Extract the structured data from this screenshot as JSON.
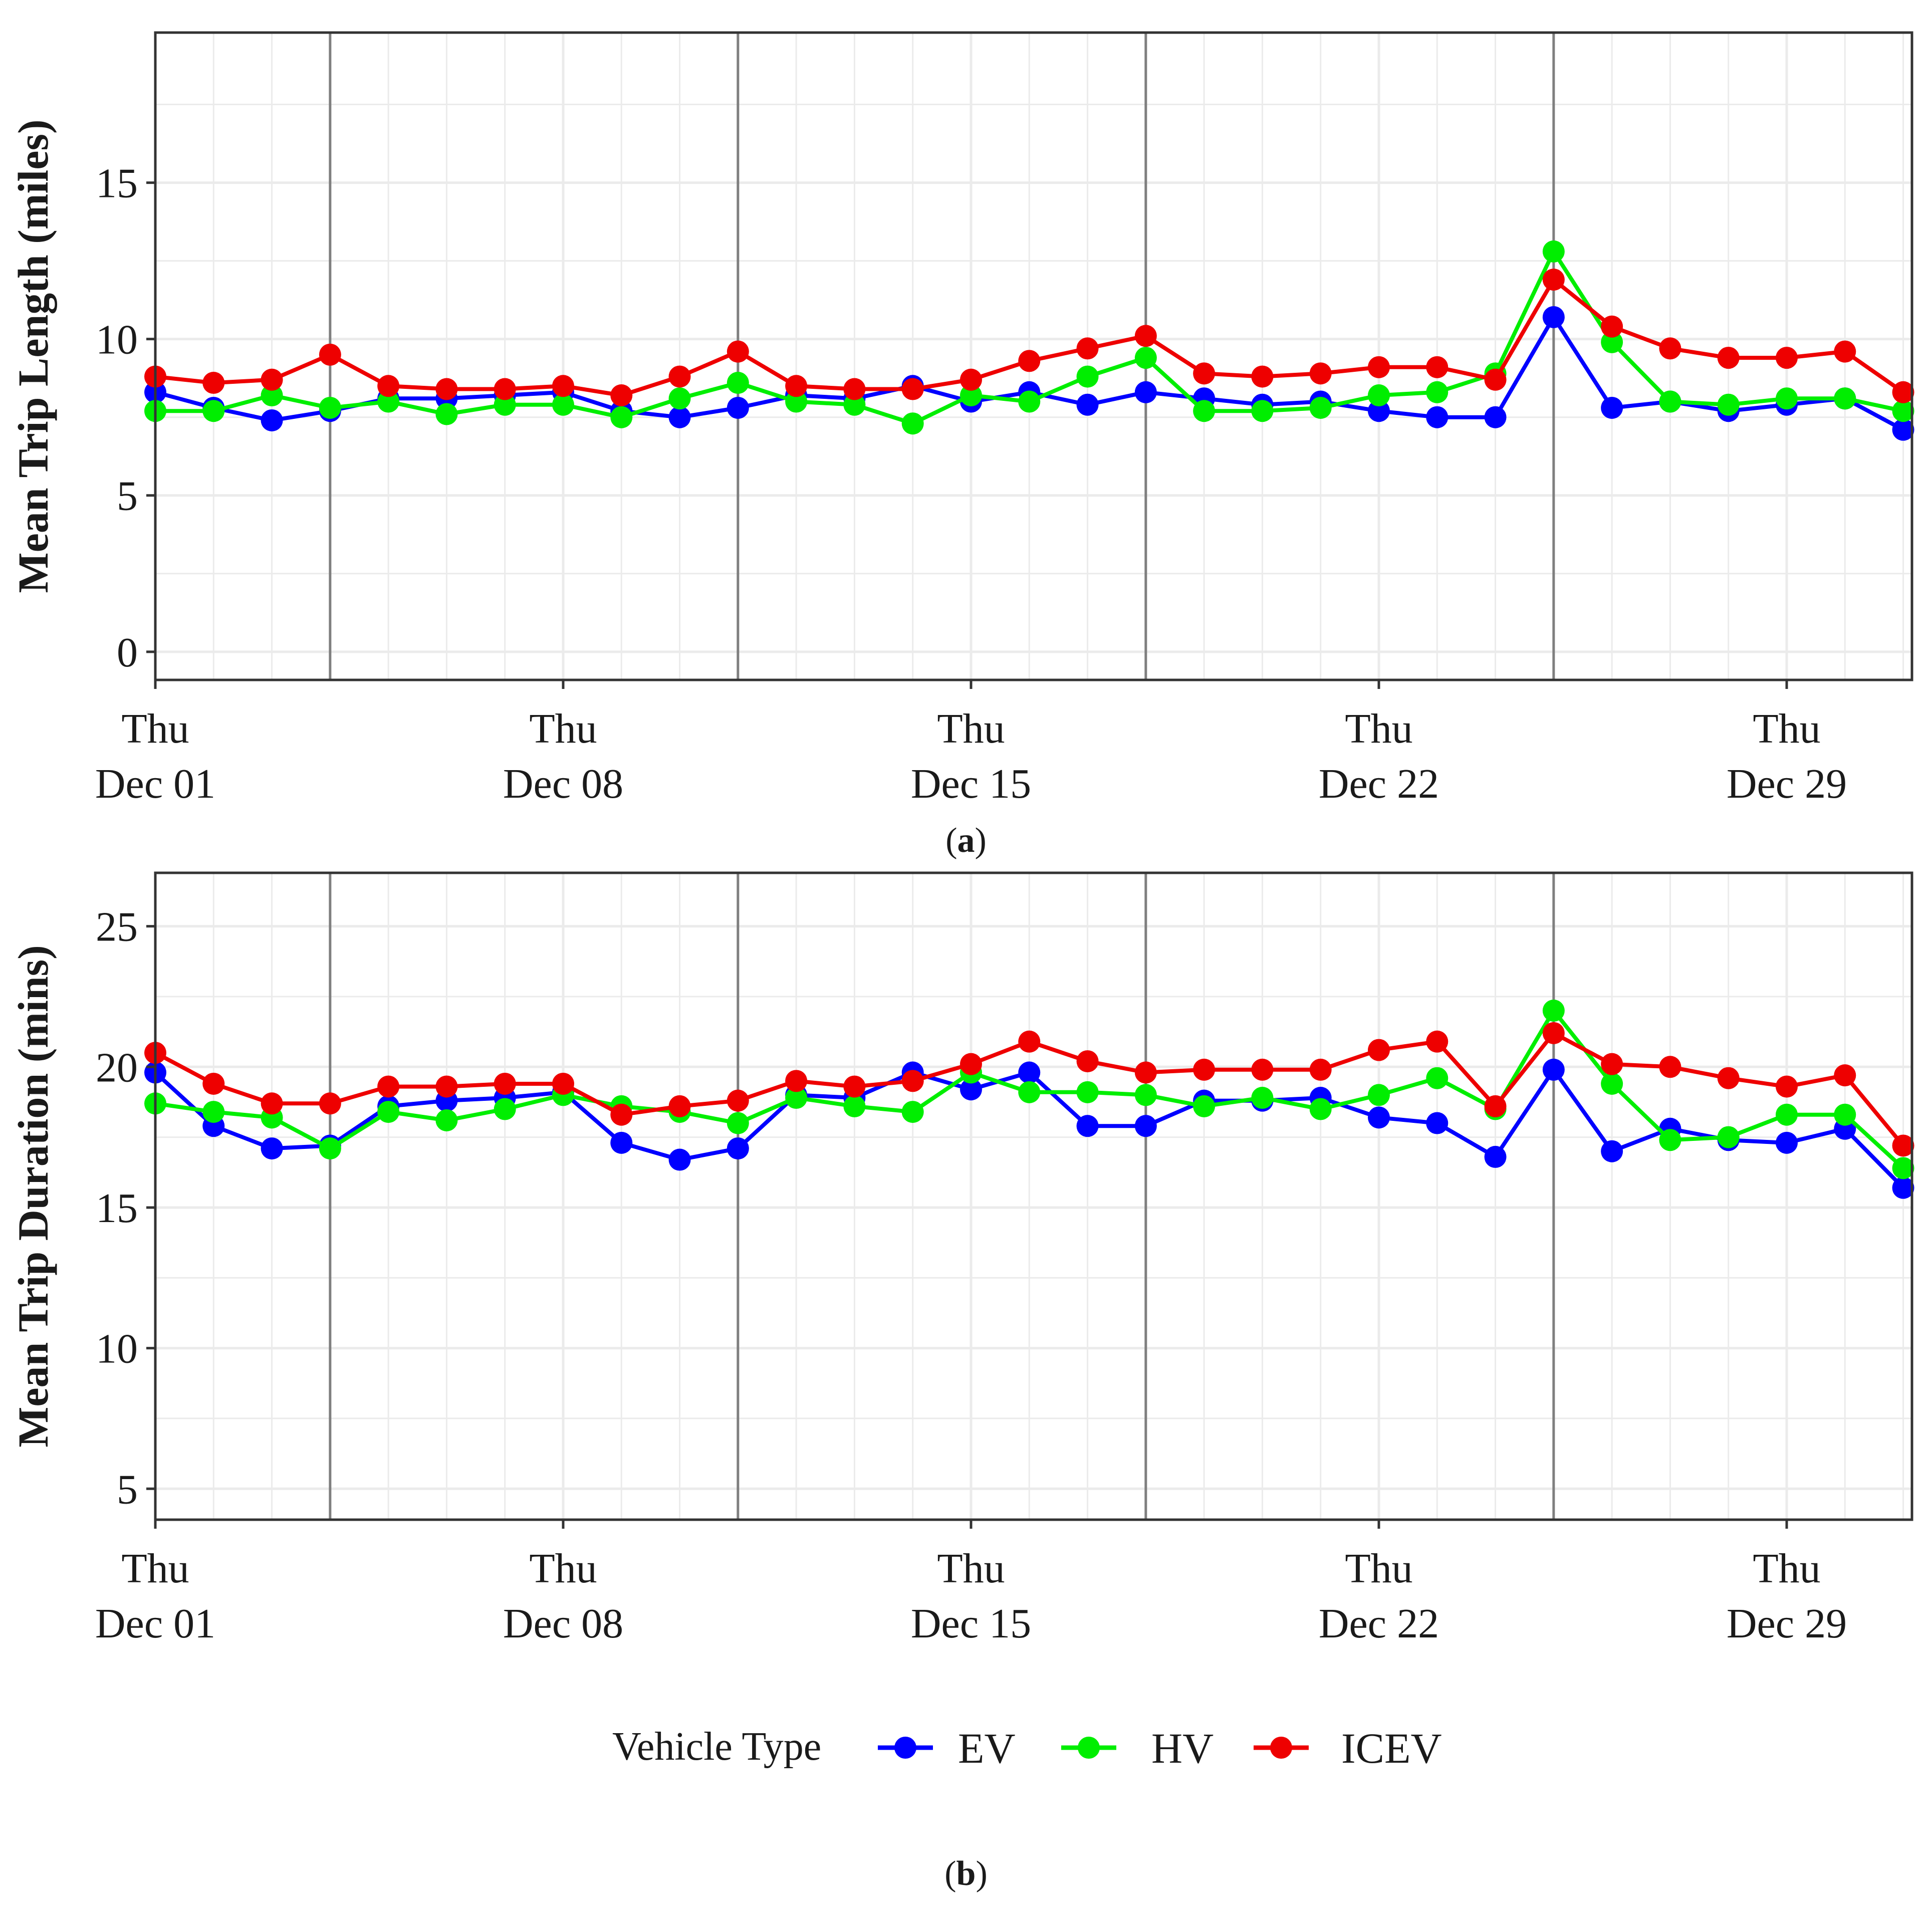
{
  "chart_data": [
    {
      "type": "line",
      "panel_label": "a",
      "ylabel": "Mean Trip Length (miles)",
      "xlabel": "",
      "ylim": [
        -0.9,
        19.8
      ],
      "yticks": [
        0,
        5,
        10,
        15
      ],
      "ytick_labels": [
        "0",
        "5",
        "10",
        "15"
      ],
      "x_dates": [
        "Dec 01",
        "Dec 02",
        "Dec 03",
        "Dec 04",
        "Dec 05",
        "Dec 06",
        "Dec 07",
        "Dec 08",
        "Dec 09",
        "Dec 10",
        "Dec 11",
        "Dec 12",
        "Dec 13",
        "Dec 14",
        "Dec 15",
        "Dec 16",
        "Dec 17",
        "Dec 18",
        "Dec 19",
        "Dec 20",
        "Dec 21",
        "Dec 22",
        "Dec 23",
        "Dec 24",
        "Dec 25",
        "Dec 26",
        "Dec 27",
        "Dec 28",
        "Dec 29",
        "Dec 30",
        "Dec 31"
      ],
      "xticks": [
        {
          "day": 1,
          "weekday": "Thu",
          "date": "Dec 01"
        },
        {
          "day": 8,
          "weekday": "Thu",
          "date": "Dec 08"
        },
        {
          "day": 15,
          "weekday": "Thu",
          "date": "Dec 15"
        },
        {
          "day": 22,
          "weekday": "Thu",
          "date": "Dec 22"
        },
        {
          "day": 29,
          "weekday": "Thu",
          "date": "Dec 29"
        }
      ],
      "highlight_days": [
        4,
        11,
        18,
        25
      ],
      "series": [
        {
          "name": "EV",
          "color": "#0000ff",
          "values": [
            8.3,
            7.8,
            7.4,
            7.7,
            8.1,
            8.1,
            8.2,
            8.3,
            7.7,
            7.5,
            7.8,
            8.2,
            8.1,
            8.5,
            8.0,
            8.3,
            7.9,
            8.3,
            8.1,
            7.9,
            8.0,
            7.7,
            7.5,
            7.5,
            10.7,
            7.8,
            8.0,
            7.7,
            7.9,
            8.1,
            7.1
          ]
        },
        {
          "name": "HV",
          "color": "#00ee00",
          "values": [
            7.7,
            7.7,
            8.2,
            7.8,
            8.0,
            7.6,
            7.9,
            7.9,
            7.5,
            8.1,
            8.6,
            8.0,
            7.9,
            7.3,
            8.2,
            8.0,
            8.8,
            9.4,
            7.7,
            7.7,
            7.8,
            8.2,
            8.3,
            8.9,
            12.8,
            9.9,
            8.0,
            7.9,
            8.1,
            8.1,
            7.7
          ]
        },
        {
          "name": "ICEV",
          "color": "#ee0000",
          "values": [
            8.8,
            8.6,
            8.7,
            9.5,
            8.5,
            8.4,
            8.4,
            8.5,
            8.2,
            8.8,
            9.6,
            8.5,
            8.4,
            8.4,
            8.7,
            9.3,
            9.7,
            10.1,
            8.9,
            8.8,
            8.9,
            9.1,
            9.1,
            8.7,
            11.9,
            10.4,
            9.7,
            9.4,
            9.4,
            9.6,
            8.3
          ]
        }
      ]
    },
    {
      "type": "line",
      "panel_label": "b",
      "ylabel": "Mean Trip Duration (mins)",
      "xlabel": "",
      "ylim": [
        3.9,
        26.9
      ],
      "yticks": [
        5,
        10,
        15,
        20,
        25
      ],
      "ytick_labels": [
        "5",
        "10",
        "15",
        "20",
        "25"
      ],
      "x_dates": [
        "Dec 01",
        "Dec 02",
        "Dec 03",
        "Dec 04",
        "Dec 05",
        "Dec 06",
        "Dec 07",
        "Dec 08",
        "Dec 09",
        "Dec 10",
        "Dec 11",
        "Dec 12",
        "Dec 13",
        "Dec 14",
        "Dec 15",
        "Dec 16",
        "Dec 17",
        "Dec 18",
        "Dec 19",
        "Dec 20",
        "Dec 21",
        "Dec 22",
        "Dec 23",
        "Dec 24",
        "Dec 25",
        "Dec 26",
        "Dec 27",
        "Dec 28",
        "Dec 29",
        "Dec 30",
        "Dec 31"
      ],
      "xticks": [
        {
          "day": 1,
          "weekday": "Thu",
          "date": "Dec 01"
        },
        {
          "day": 8,
          "weekday": "Thu",
          "date": "Dec 08"
        },
        {
          "day": 15,
          "weekday": "Thu",
          "date": "Dec 15"
        },
        {
          "day": 22,
          "weekday": "Thu",
          "date": "Dec 22"
        },
        {
          "day": 29,
          "weekday": "Thu",
          "date": "Dec 29"
        }
      ],
      "highlight_days": [
        4,
        11,
        18,
        25
      ],
      "series": [
        {
          "name": "EV",
          "color": "#0000ff",
          "values": [
            19.8,
            17.9,
            17.1,
            17.2,
            18.6,
            18.8,
            18.9,
            19.1,
            17.3,
            16.7,
            17.1,
            19.0,
            18.9,
            19.8,
            19.2,
            19.8,
            17.9,
            17.9,
            18.8,
            18.8,
            18.9,
            18.2,
            18.0,
            16.8,
            19.9,
            17.0,
            17.8,
            17.4,
            17.3,
            17.8,
            15.7
          ]
        },
        {
          "name": "HV",
          "color": "#00ee00",
          "values": [
            18.7,
            18.4,
            18.2,
            17.1,
            18.4,
            18.1,
            18.5,
            19.0,
            18.6,
            18.4,
            18.0,
            18.9,
            18.6,
            18.4,
            19.8,
            19.1,
            19.1,
            19.0,
            18.6,
            18.9,
            18.5,
            19.0,
            19.6,
            18.5,
            22.0,
            19.4,
            17.4,
            17.5,
            18.3,
            18.3,
            16.4
          ]
        },
        {
          "name": "ICEV",
          "color": "#ee0000",
          "values": [
            20.5,
            19.4,
            18.7,
            18.7,
            19.3,
            19.3,
            19.4,
            19.4,
            18.3,
            18.6,
            18.8,
            19.5,
            19.3,
            19.5,
            20.1,
            20.9,
            20.2,
            19.8,
            19.9,
            19.9,
            19.9,
            20.6,
            20.9,
            18.6,
            21.2,
            20.1,
            20.0,
            19.6,
            19.3,
            19.7,
            17.2
          ]
        }
      ]
    }
  ],
  "legend": {
    "title": "Vehicle Type",
    "items": [
      {
        "label": "EV",
        "color": "#0000ff"
      },
      {
        "label": "HV",
        "color": "#00ee00"
      },
      {
        "label": "ICEV",
        "color": "#ee0000"
      }
    ]
  },
  "colors": {
    "grid": "#ebebeb",
    "highlight_line": "#7f7f7f",
    "panel_border": "#333333"
  }
}
